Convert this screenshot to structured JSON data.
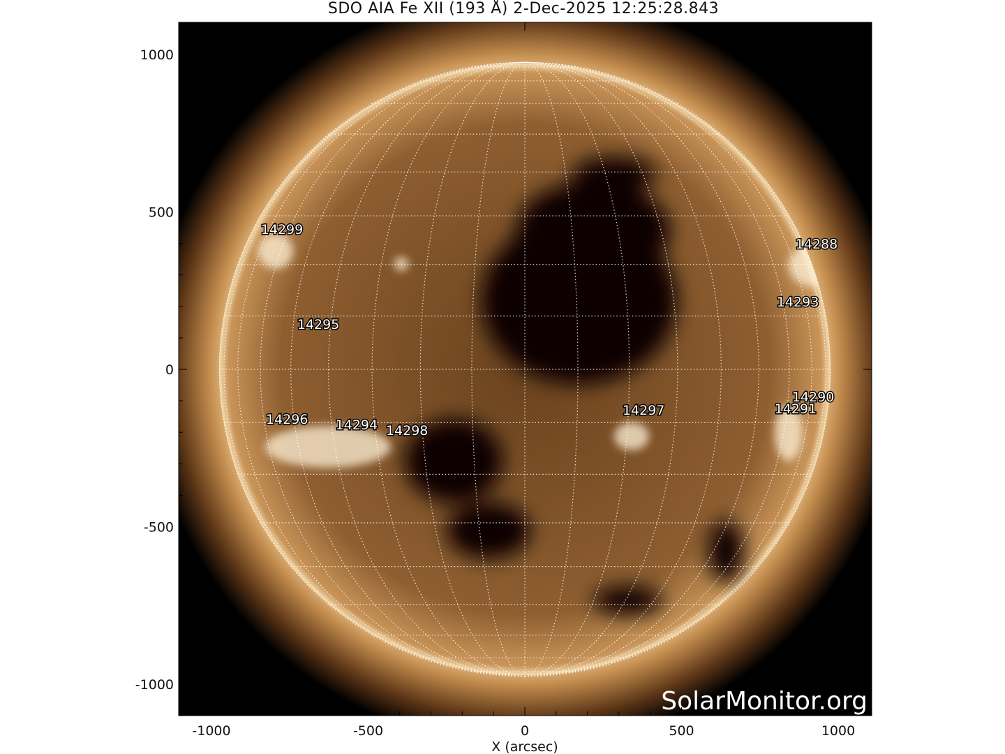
{
  "title": "SDO AIA Fe XII (193 Å)  2-Dec-2025 12:25:28.843",
  "xlabel": "X (arcsec)",
  "watermark": "SolarMonitor.org",
  "axes": {
    "xlim": [
      -1105,
      1107
    ],
    "ylim": [
      -1100,
      1100
    ],
    "xticks": [
      "-1000",
      "-500",
      "0",
      "500",
      "1000"
    ],
    "yticks": [
      "1000",
      "500",
      "0",
      "-500",
      "-1000"
    ]
  },
  "solar_radius_arcsec": 975,
  "grid_spacing_deg": 10,
  "colors": {
    "disk": "#8a5a2c",
    "corona": "#d8a868",
    "grid": "#ffffff",
    "background": "#000000"
  },
  "active_regions": [
    {
      "label": "14299",
      "x": -775,
      "y": 446
    },
    {
      "label": "14288",
      "x": 931,
      "y": 399
    },
    {
      "label": "14293",
      "x": 871,
      "y": 215
    },
    {
      "label": "14295",
      "x": -659,
      "y": 144
    },
    {
      "label": "14290",
      "x": 920,
      "y": -86
    },
    {
      "label": "14291",
      "x": 864,
      "y": -124
    },
    {
      "label": "14297",
      "x": 379,
      "y": -129
    },
    {
      "label": "14296",
      "x": -759,
      "y": -157
    },
    {
      "label": "14294",
      "x": -537,
      "y": -175
    },
    {
      "label": "14298",
      "x": -376,
      "y": -193
    }
  ]
}
